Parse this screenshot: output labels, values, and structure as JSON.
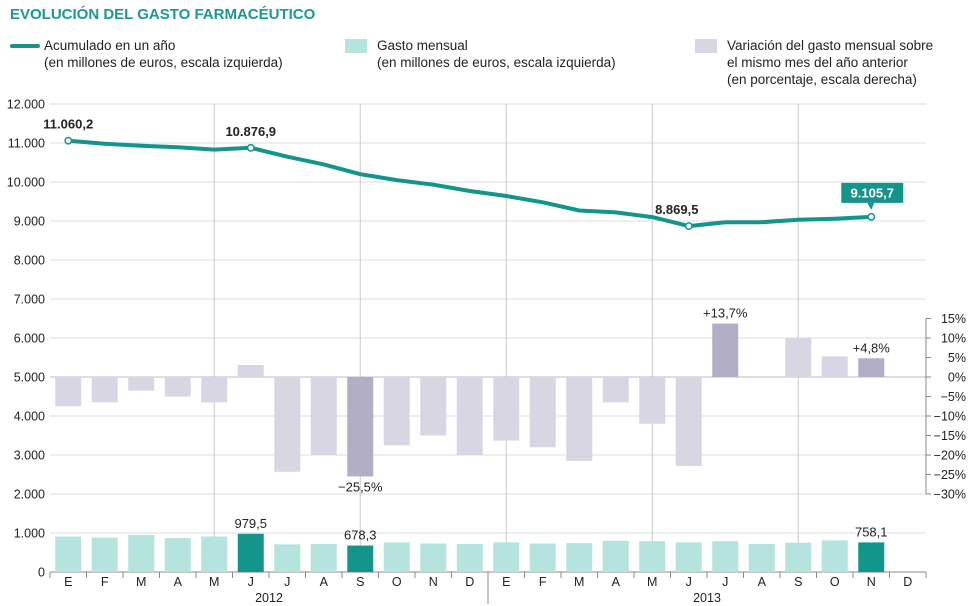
{
  "chart_data": {
    "type": "bar",
    "title": "EVOLUCIÓN DEL GASTO FARMACÉUTICO",
    "colors": {
      "line": "#13958b",
      "monthly": "#b5e3de",
      "monthly_highlight": "#13958b",
      "variation": "#d8d6e2",
      "variation_highlight": "#b1aec6",
      "callout_bg": "#13958b",
      "grid": "#c8c8c8"
    },
    "legend": [
      {
        "key": "line",
        "lines": [
          "Acumulado en un año",
          "(en millones de euros, escala izquierda)"
        ]
      },
      {
        "key": "monthly",
        "lines": [
          "Gasto mensual",
          "(en millones de euros, escala izquierda)"
        ]
      },
      {
        "key": "variation",
        "lines": [
          "Variación del gasto mensual sobre",
          "el mismo mes del año anterior",
          "(en porcentaje, escala derecha)"
        ]
      }
    ],
    "categories": [
      "E",
      "F",
      "M",
      "A",
      "M",
      "J",
      "J",
      "A",
      "S",
      "O",
      "N",
      "D",
      "E",
      "F",
      "M",
      "A",
      "M",
      "J",
      "J",
      "A",
      "S",
      "O",
      "N",
      "D"
    ],
    "years": [
      {
        "label": "2012",
        "from": 0,
        "to": 11
      },
      {
        "label": "2013",
        "from": 12,
        "to": 23
      }
    ],
    "left_axis": {
      "ylim": [
        0,
        12000
      ],
      "ticks": [
        0,
        1000,
        2000,
        3000,
        4000,
        5000,
        6000,
        7000,
        8000,
        9000,
        10000,
        11000,
        12000
      ],
      "tick_labels": [
        "0",
        "1.000",
        "2.000",
        "3.000",
        "4.000",
        "5.000",
        "6.000",
        "7.000",
        "8.000",
        "9.000",
        "10.000",
        "11.000",
        "12.000"
      ]
    },
    "right_axis": {
      "ylim": [
        -30,
        15
      ],
      "zero_at_left_value": 5000,
      "ticks": [
        15,
        10,
        5,
        0,
        -5,
        -10,
        -15,
        -20,
        -25,
        -30
      ],
      "tick_labels": [
        "15%",
        "10%",
        "5%",
        "0%",
        "−5%",
        "−10%",
        "−15%",
        "−20%",
        "−25%",
        "−30%"
      ]
    },
    "series": [
      {
        "name": "Acumulado en un año",
        "type": "line",
        "axis": "left",
        "values": [
          11060.2,
          10980,
          10930,
          10890,
          10830,
          10876.9,
          10650,
          10450,
          10200,
          10050,
          9930,
          9770,
          9640,
          9480,
          9270,
          9220,
          9100,
          8869.5,
          8970,
          8970,
          9030,
          9060,
          9105.7,
          null
        ]
      },
      {
        "name": "Gasto mensual",
        "type": "bar",
        "axis": "left",
        "values": [
          910,
          880,
          950,
          870,
          910,
          979.5,
          710,
          720,
          678.3,
          760,
          730,
          720,
          760,
          730,
          740,
          800,
          790,
          760,
          790,
          720,
          750,
          810,
          758.1,
          null
        ],
        "highlight": [
          5,
          8,
          22
        ]
      },
      {
        "name": "Variación del gasto mensual sobre el mismo mes del año anterior",
        "type": "bar",
        "axis": "right",
        "values": [
          -7.5,
          -6.5,
          -3.5,
          -5,
          -6.5,
          3.1,
          -24.3,
          -20,
          -25.5,
          -17.5,
          -15,
          -20,
          -16.3,
          -18,
          -21.5,
          -6.5,
          -12,
          -22.8,
          13.7,
          0,
          10,
          5.3,
          4.8,
          null
        ],
        "highlight": [
          8,
          18,
          22
        ]
      }
    ],
    "annotations": [
      {
        "series": 0,
        "index": 0,
        "text": "11.060,2",
        "style": "bold"
      },
      {
        "series": 0,
        "index": 5,
        "text": "10.876,9",
        "style": "bold"
      },
      {
        "series": 0,
        "index": 17,
        "text": "8.869,5",
        "style": "bold"
      },
      {
        "series": 0,
        "index": 22,
        "text": "9.105,7",
        "style": "callout"
      },
      {
        "series": 1,
        "index": 5,
        "text": "979,5",
        "style": "normal"
      },
      {
        "series": 1,
        "index": 8,
        "text": "678,3",
        "style": "normal"
      },
      {
        "series": 1,
        "index": 22,
        "text": "758,1",
        "style": "normal"
      },
      {
        "series": 2,
        "index": 8,
        "text": "−25,5%",
        "style": "normal"
      },
      {
        "series": 2,
        "index": 18,
        "text": "+13,7%",
        "style": "normal"
      },
      {
        "series": 2,
        "index": 22,
        "text": "+4,8%",
        "style": "normal"
      }
    ]
  }
}
